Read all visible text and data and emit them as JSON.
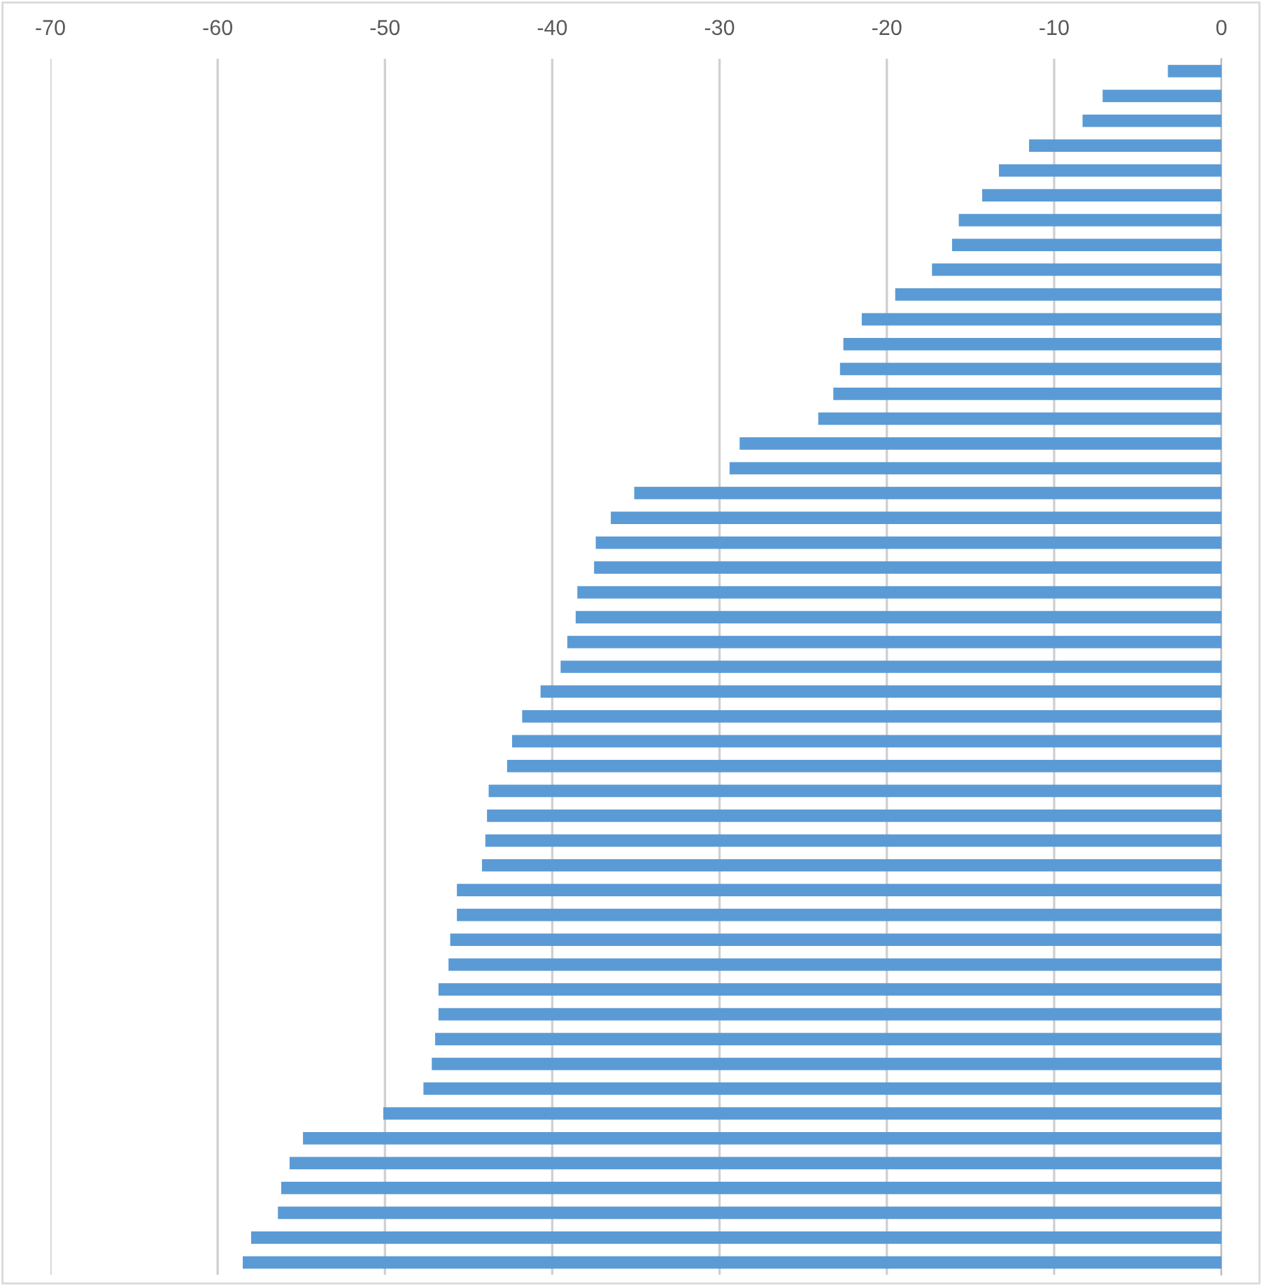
{
  "chart_data": {
    "type": "bar",
    "orientation": "horizontal",
    "categories": [
      null,
      null,
      null,
      null,
      null,
      null,
      null,
      null,
      null,
      null,
      null,
      null,
      null,
      null,
      null,
      null,
      null,
      null,
      null,
      null,
      null,
      null,
      null,
      null,
      null,
      null,
      null,
      null,
      null,
      null,
      null,
      null,
      null,
      null,
      null,
      null,
      null,
      null,
      null,
      null,
      null,
      null,
      null,
      null,
      null,
      null,
      null,
      null,
      null
    ],
    "values": [
      -3.2,
      -7.1,
      -8.3,
      -11.5,
      -13.3,
      -14.3,
      -15.7,
      -16.1,
      -17.3,
      -19.5,
      -21.5,
      -22.6,
      -22.8,
      -23.2,
      -24.1,
      -28.8,
      -29.4,
      -35.1,
      -36.5,
      -37.4,
      -37.5,
      -38.5,
      -38.6,
      -39.1,
      -39.5,
      -40.7,
      -41.8,
      -42.4,
      -42.7,
      -43.8,
      -43.9,
      -44.0,
      -44.2,
      -45.7,
      -45.7,
      -46.1,
      -46.2,
      -46.8,
      -46.8,
      -47.0,
      -47.2,
      -47.7,
      -50.1,
      -54.9,
      -55.7,
      -56.2,
      -56.4,
      -58.0,
      -58.5
    ],
    "color": "#5b9bd5",
    "xlim": [
      -70,
      0
    ],
    "xticks": [
      -70,
      -60,
      -50,
      -40,
      -30,
      -20,
      -10,
      0
    ],
    "grid": "x",
    "tick_labels": "x"
  }
}
